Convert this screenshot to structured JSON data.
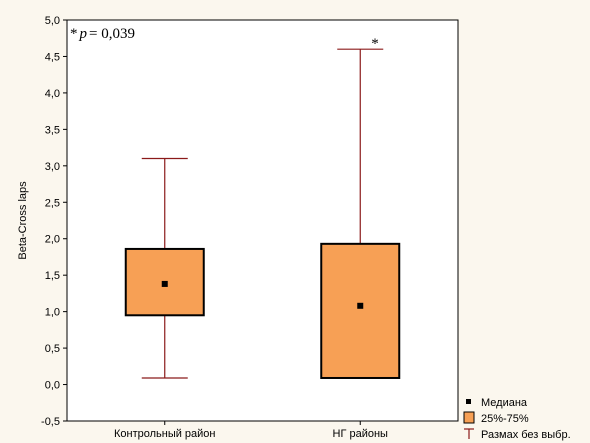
{
  "colors": {
    "box_fill": "#f7a055",
    "box_stroke": "#000000",
    "whisker": "#8b1a1a",
    "median_marker": "#000000",
    "plot_bg": "#ffffff",
    "page_bg": "#fbf7ee"
  },
  "chart_data": {
    "type": "box",
    "ylabel": "Beta-Cross laps",
    "ylim": [
      -0.5,
      5.0
    ],
    "yticks": [
      "-0,5",
      "0,0",
      "0,5",
      "1,0",
      "1,5",
      "2,0",
      "2,5",
      "3,0",
      "3,5",
      "4,0",
      "4,5",
      "5,0"
    ],
    "ytick_values": [
      -0.5,
      0,
      0.5,
      1.0,
      1.5,
      2.0,
      2.5,
      3.0,
      3.5,
      4.0,
      4.5,
      5.0
    ],
    "categories": [
      "Контрольный район",
      "НГ районы"
    ],
    "boxes": [
      {
        "category": "Контрольный район",
        "median": 1.38,
        "q1": 0.95,
        "q3": 1.86,
        "min": 0.09,
        "max": 3.1,
        "significance": ""
      },
      {
        "category": "НГ районы",
        "median": 1.08,
        "q1": 0.09,
        "q3": 1.93,
        "min": 0.09,
        "max": 4.6,
        "significance": "*"
      }
    ],
    "annotation": {
      "star": "*",
      "p_label": "p",
      "p_value": "= 0,039"
    },
    "legend": [
      {
        "marker": "square",
        "label": "Медиана"
      },
      {
        "marker": "box",
        "label": "25%-75%"
      },
      {
        "marker": "whisker",
        "label": "Размах без выбр."
      }
    ],
    "legend_position": "bottom-right",
    "grid": false
  }
}
